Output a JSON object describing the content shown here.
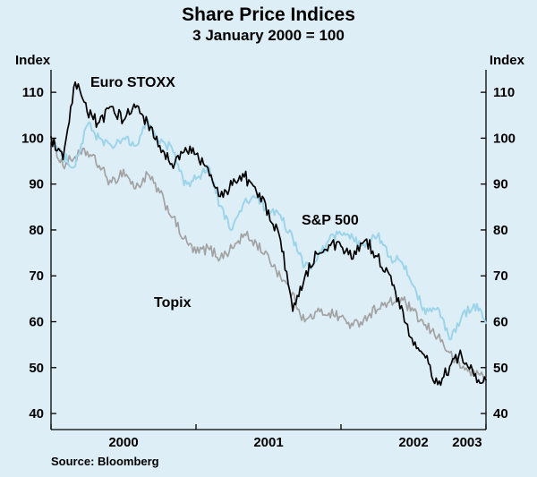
{
  "chart_data": {
    "type": "line",
    "title": "Share Price Indices",
    "subtitle": "3 January 2000 = 100",
    "ylabel_left": "Index",
    "ylabel_right": "Index",
    "source": "Source: Bloomberg",
    "background": "#ddeef7",
    "grid": false,
    "legend_position": "inline-annotations",
    "xlim": [
      2000,
      2003
    ],
    "ylim": [
      36.5,
      114.9
    ],
    "yticks": [
      40,
      50,
      60,
      70,
      80,
      90,
      100,
      110
    ],
    "xticks": [
      2000,
      2001,
      2002,
      2003
    ],
    "xtick_labels": [
      {
        "label": "2000",
        "x": 2000.5
      },
      {
        "label": "2001",
        "x": 2001.5
      },
      {
        "label": "2002",
        "x": 2002.5
      },
      {
        "label": "2003",
        "x": 2002.87
      }
    ],
    "x_unit": "decimal-year-monthly",
    "x": [
      2000.0,
      2000.083,
      2000.167,
      2000.25,
      2000.333,
      2000.417,
      2000.5,
      2000.583,
      2000.667,
      2000.75,
      2000.833,
      2000.917,
      2001.0,
      2001.083,
      2001.167,
      2001.25,
      2001.333,
      2001.417,
      2001.5,
      2001.583,
      2001.667,
      2001.75,
      2001.833,
      2001.917,
      2002.0,
      2002.083,
      2002.167,
      2002.25,
      2002.333,
      2002.417,
      2002.5,
      2002.583,
      2002.667,
      2002.75,
      2002.833,
      2002.917,
      2003.0
    ],
    "series": [
      {
        "id": "topix",
        "name": "Topix",
        "color": "#a2a2a2",
        "stroke_width": 1.7,
        "noise": 1.2,
        "values": [
          100,
          94,
          96,
          97,
          94,
          90,
          93,
          89,
          92,
          88,
          83,
          78,
          75,
          76,
          74,
          76,
          79,
          77,
          74,
          70,
          66,
          60,
          62,
          62,
          61,
          59,
          61,
          63,
          64,
          65,
          62,
          59,
          57,
          53,
          50,
          49,
          48
        ]
      },
      {
        "id": "sp500",
        "name": "S&P 500",
        "color": "#9dd4ea",
        "stroke_width": 2.0,
        "noise": 1.1,
        "values": [
          100,
          96,
          94,
          103,
          100,
          98,
          100,
          98,
          104,
          99,
          98,
          90,
          91,
          94,
          85,
          80,
          86,
          87,
          84,
          83,
          78,
          72,
          73,
          78,
          79,
          78,
          76,
          79,
          74,
          73,
          68,
          62,
          63,
          56,
          61,
          64,
          60
        ]
      },
      {
        "id": "euro-stoxx",
        "name": "Euro STOXX",
        "color": "#000000",
        "stroke_width": 1.7,
        "noise": 1.4,
        "values": [
          100,
          95,
          112,
          106,
          103,
          107,
          104,
          107,
          103,
          98,
          94,
          97,
          97,
          93,
          87,
          90,
          92,
          88,
          84,
          78,
          62,
          70,
          75,
          77,
          76,
          74,
          78,
          74,
          70,
          63,
          55,
          52,
          46,
          50,
          53,
          48,
          47
        ]
      }
    ],
    "annotations": [
      {
        "id": "euro-stoxx",
        "text": "Euro STOXX"
      },
      {
        "id": "sp500",
        "text": "S&P 500"
      },
      {
        "id": "topix",
        "text": "Topix"
      }
    ]
  }
}
